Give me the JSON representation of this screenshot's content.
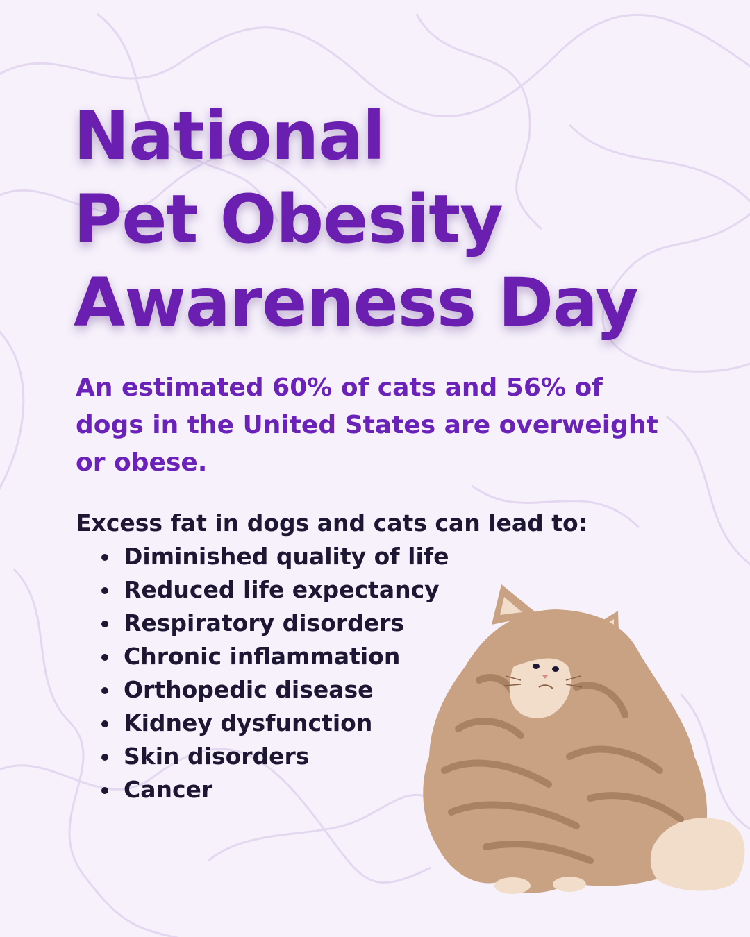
{
  "colors": {
    "background": "#f6f1fb",
    "title": "#6a1fb0",
    "stat": "#6a22b8",
    "text": "#1d1733",
    "pattern_line": "#e3d8f0",
    "cat_fur": "#c9a283",
    "cat_stripes": "#a98264",
    "cat_light": "#f1ddc9"
  },
  "title": {
    "line1": "National",
    "line2": "Pet Obesity",
    "line3": "Awareness Day"
  },
  "stat_text": "An estimated 60% of cats and 56% of dogs in the United States are overweight or obese.",
  "intro_text": "Excess fat in dogs and cats can lead to:",
  "conditions": [
    "Diminished quality of life",
    "Reduced life expectancy",
    "Respiratory disorders",
    "Chronic inflammation",
    "Orthopedic disease",
    "Kidney dysfunction",
    "Skin disorders",
    "Cancer"
  ],
  "illustration": "fluffy-orange-cat-illustration",
  "pattern": "wavy-line-background-pattern"
}
